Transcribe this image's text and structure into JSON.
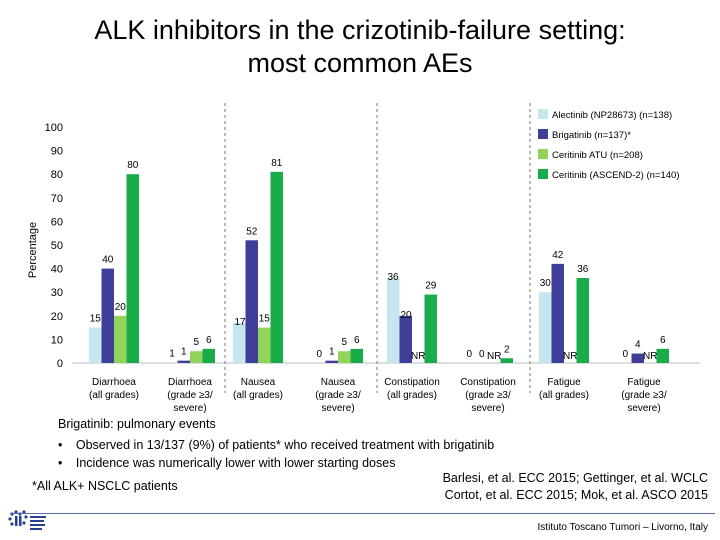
{
  "title_line1": "ALK inhibitors in the crizotinib-failure setting:",
  "title_line2": "most common AEs",
  "colors": {
    "alectinib": "#c6e6ef",
    "brigatinib": "#3f3f9a",
    "ceritinib_atu": "#93d35c",
    "ceritinib_ascend": "#1aab4a"
  },
  "chart_data": {
    "type": "bar",
    "ylabel": "Percentage",
    "ylim": [
      0,
      100
    ],
    "yticks": [
      0,
      10,
      20,
      30,
      40,
      50,
      60,
      70,
      80,
      90,
      100
    ],
    "categories": [
      {
        "line1": "Diarrhoea",
        "line2": "(all grades)",
        "line3": ""
      },
      {
        "line1": "Diarrhoea",
        "line2": "(grade ≥3/",
        "line3": "severe)"
      },
      {
        "line1": "Nausea",
        "line2": "(all grades)",
        "line3": ""
      },
      {
        "line1": "Nausea",
        "line2": "(grade ≥3/",
        "line3": "severe)"
      },
      {
        "line1": "Constipation",
        "line2": "(all grades)",
        "line3": ""
      },
      {
        "line1": "Constipation",
        "line2": "(grade ≥3/",
        "line3": "severe)"
      },
      {
        "line1": "Fatigue",
        "line2": "(all grades)",
        "line3": ""
      },
      {
        "line1": "Fatigue",
        "line2": "(grade ≥3/",
        "line3": "severe)"
      }
    ],
    "series": [
      {
        "name": "Alectinib (NP28673) (n=138)",
        "color": "#c6e6ef",
        "values": [
          15,
          0,
          17,
          0,
          36,
          0,
          30,
          0
        ],
        "labels": [
          "15",
          "",
          "",
          "0",
          "",
          "0",
          "30",
          "0"
        ]
      },
      {
        "name": "Brigatinib (n=137)*",
        "color": "#3f3f9a",
        "values": [
          40,
          1,
          52,
          1,
          20,
          0,
          42,
          4
        ],
        "labels": [
          "40",
          "1",
          "52",
          "1",
          "",
          "0",
          "42",
          "4"
        ]
      },
      {
        "name": "Ceritinib ATU (n=208)",
        "color": "#93d35c",
        "values": [
          20,
          5,
          15,
          5,
          null,
          null,
          null,
          null
        ],
        "labels": [
          "20",
          "5",
          "15",
          "5",
          "NR",
          "NR",
          "NR",
          "NR"
        ]
      },
      {
        "name": "Ceritinib (ASCEND-2) (n=140)",
        "color": "#1aab4a",
        "values": [
          80,
          6,
          81,
          6,
          29,
          2,
          36,
          6
        ],
        "labels": [
          "80",
          "6",
          "81",
          "6",
          "29",
          "2",
          "36",
          "6"
        ]
      }
    ],
    "annotations": [
      "1",
      "17",
      "36",
      "20"
    ]
  },
  "notes": {
    "heading": "Brigatinib: pulmonary events",
    "bullet1": "Observed in 13/137 (9%) of patients* who received treatment with brigatinib",
    "bullet2": "Incidence was numerically lower with lower starting doses",
    "footnote": "*All ALK+ NSCLC patients",
    "bullet_char": "•"
  },
  "references": {
    "line1": "Barlesi, et al. ECC 2015; Gettinger, et al. WCLC",
    "line2": "Cortot, et al. ECC 2015; Mok, et al. ASCO 2015"
  },
  "footer": {
    "institute": "Istituto Toscano Tumori – Livorno, Italy"
  }
}
